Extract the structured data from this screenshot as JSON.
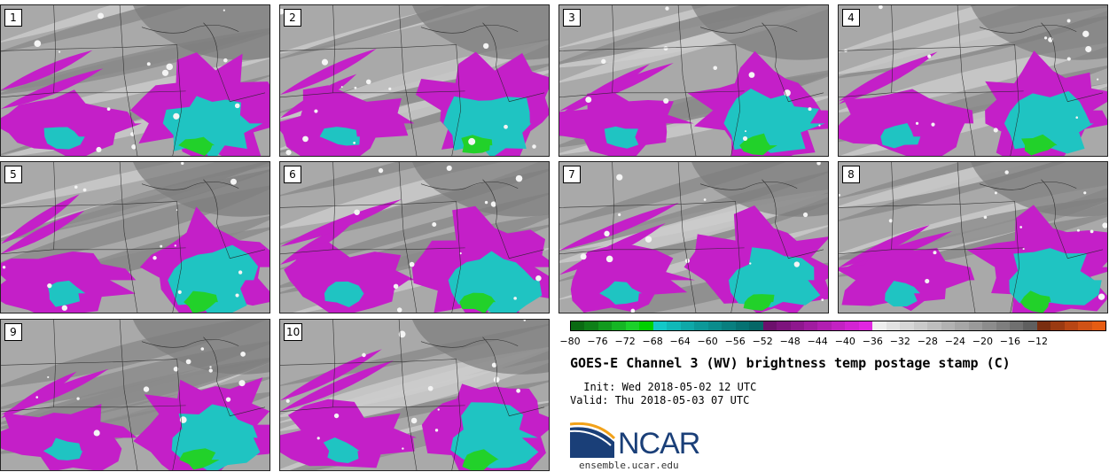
{
  "panels": [
    {
      "label": "1"
    },
    {
      "label": "2"
    },
    {
      "label": "3"
    },
    {
      "label": "4"
    },
    {
      "label": "5"
    },
    {
      "label": "6"
    },
    {
      "label": "7"
    },
    {
      "label": "8"
    },
    {
      "label": "9"
    },
    {
      "label": "10"
    }
  ],
  "colorbar": {
    "ticks": [
      "−80",
      "−76",
      "−72",
      "−68",
      "−64",
      "−60",
      "−56",
      "−52",
      "−48",
      "−44",
      "−40",
      "−36",
      "−32",
      "−28",
      "−24",
      "−20",
      "−16",
      "−12"
    ],
    "min": -80,
    "max": -10,
    "step": 2,
    "colors": [
      "#0a6a12",
      "#0e7f18",
      "#129a1e",
      "#16b524",
      "#1bd02a",
      "#00d000",
      "#12c8c8",
      "#10b8b8",
      "#0ea8a8",
      "#0c9898",
      "#0a8c8c",
      "#087f7f",
      "#067272",
      "#056767",
      "#6c106c",
      "#7d147d",
      "#8e188e",
      "#a01ca0",
      "#b11fb1",
      "#c222c2",
      "#d224d2",
      "#e026e0",
      "#eeeeee",
      "#e2e2e2",
      "#d6d6d6",
      "#cacaca",
      "#bebebe",
      "#b2b2b2",
      "#a6a6a6",
      "#9a9a9a",
      "#8c8c8c",
      "#7e7e7e",
      "#707070",
      "#5f5f5f",
      "#7a2e10",
      "#9a3a12",
      "#b84614",
      "#d05216",
      "#e65c12"
    ]
  },
  "title": "GOES-E Channel 3 (WV) brightness temp postage stamp (C)",
  "init": " Init: Wed 2018-05-02 12 UTC",
  "valid": "Valid: Thu 2018-05-03 07 UTC",
  "logo": {
    "name": "ncar-logo",
    "text": "NCAR",
    "site": "ensemble.ucar.edu"
  },
  "colors": {
    "magenta": "#c41fc8",
    "cyan": "#1fc4c2",
    "green": "#22d12a",
    "gray_light": "#cccccc",
    "gray_mid": "#a9a9a9",
    "gray_dark": "#8a8a8a"
  }
}
